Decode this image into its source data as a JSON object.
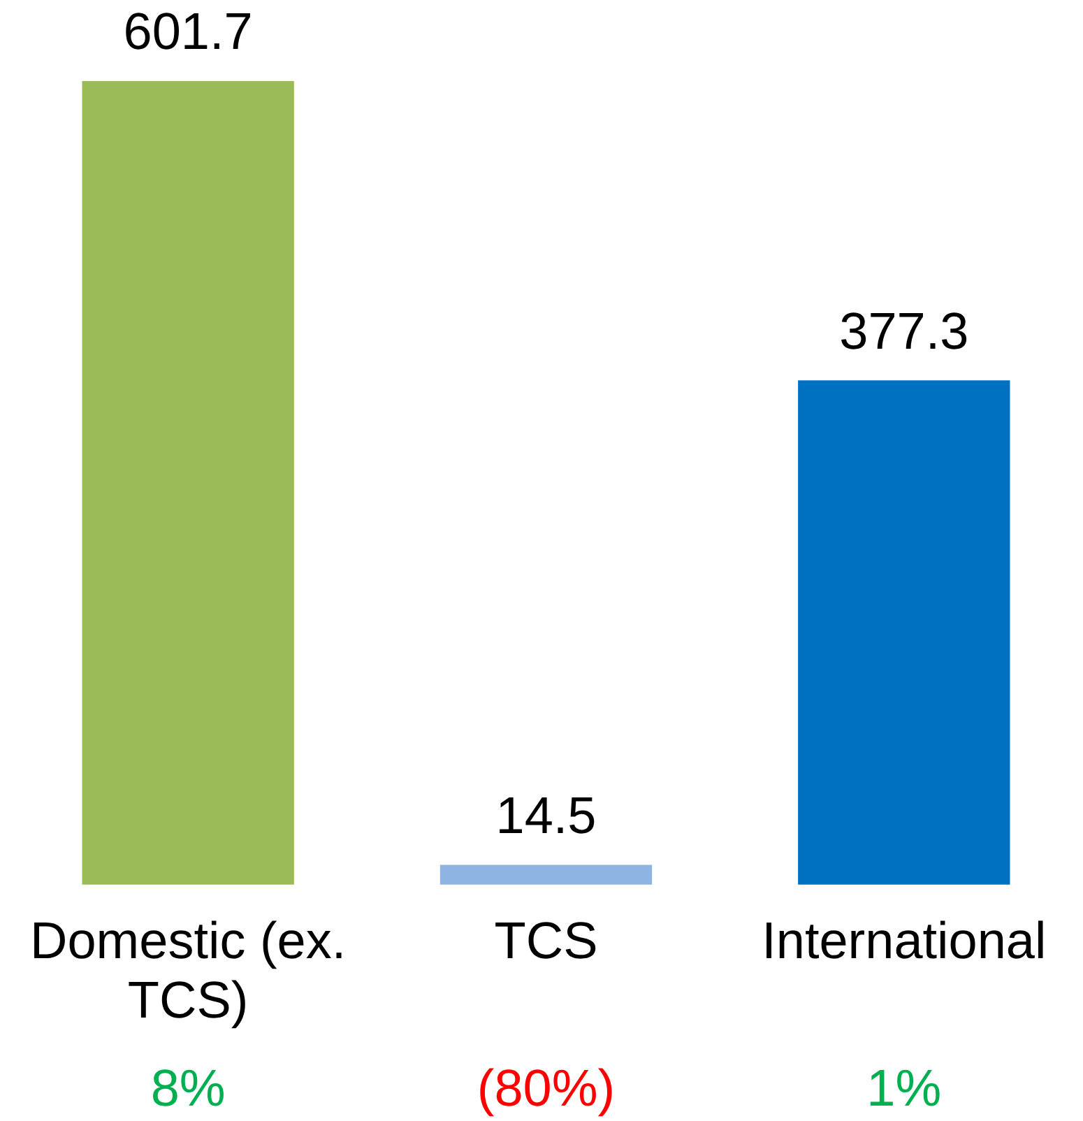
{
  "chart_data": {
    "type": "bar",
    "categories": [
      "Domestic (ex. TCS)",
      "TCS",
      "International"
    ],
    "values": [
      601.7,
      14.5,
      377.3
    ],
    "colors": [
      "#9bbb59",
      "#8eb4e3",
      "#0070c0"
    ],
    "tick_labels": "x",
    "grid": false,
    "legend": false,
    "data_labels": true,
    "annotations": [
      "8%",
      "(80%)",
      "1%"
    ]
  }
}
